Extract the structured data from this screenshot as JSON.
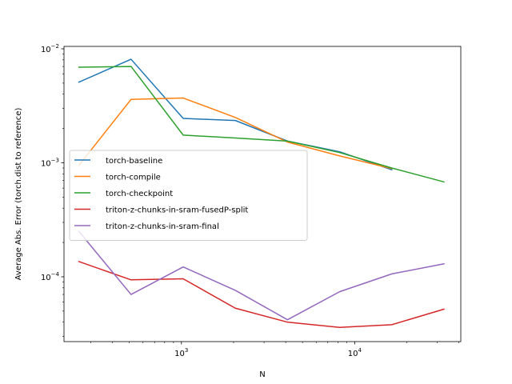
{
  "chart_data": {
    "type": "line",
    "title": "",
    "xlabel": "N",
    "ylabel": "Average Abs. Error (torch.dist to reference)",
    "xscale": "log",
    "yscale": "log",
    "xlim": [
      210,
      41000
    ],
    "ylim": [
      2.7e-05,
      0.0105
    ],
    "grid": false,
    "legend_position": "center-left",
    "x_ticks": [
      {
        "value": 1000,
        "base": "10",
        "exp": "3"
      },
      {
        "value": 10000,
        "base": "10",
        "exp": "4"
      }
    ],
    "y_ticks": [
      {
        "value": 0.0001,
        "base": "10",
        "exp": "−4"
      },
      {
        "value": 0.001,
        "base": "10",
        "exp": "−3"
      },
      {
        "value": 0.01,
        "base": "10",
        "exp": "−2"
      }
    ],
    "series": [
      {
        "name": "torch-baseline",
        "color": "#1f77b4",
        "x": [
          256,
          512,
          1024,
          2048,
          4096,
          8192,
          16384
        ],
        "y": [
          0.0051,
          0.0081,
          0.00245,
          0.00235,
          0.00155,
          0.00125,
          0.00087
        ]
      },
      {
        "name": "torch-compile",
        "color": "#ff7f0e",
        "x": [
          256,
          512,
          1024,
          2048,
          4096,
          8192,
          16384
        ],
        "y": [
          0.00095,
          0.0036,
          0.0037,
          0.0025,
          0.00152,
          0.00115,
          0.00089
        ]
      },
      {
        "name": "torch-checkpoint",
        "color": "#2ca02c",
        "x": [
          256,
          512,
          1024,
          2048,
          4096,
          8192,
          16384,
          32768
        ],
        "y": [
          0.0069,
          0.007,
          0.00175,
          0.00165,
          0.00155,
          0.00123,
          0.0009,
          0.00068
        ]
      },
      {
        "name": "triton-z-chunks-in-sram-fusedP-split",
        "color": "#d62728",
        "x": [
          256,
          512,
          1024,
          2048,
          4096,
          8192,
          16384,
          32768
        ],
        "y": [
          0.000136,
          9.4e-05,
          9.6e-05,
          5.3e-05,
          4e-05,
          3.6e-05,
          3.8e-05,
          5.2e-05
        ]
      },
      {
        "name": "triton-z-chunks-in-sram-final",
        "color": "#9467bd",
        "x": [
          256,
          512,
          1024,
          2048,
          4096,
          8192,
          16384,
          32768
        ],
        "y": [
          0.00025,
          7e-05,
          0.000122,
          7.6e-05,
          4.2e-05,
          7.4e-05,
          0.000106,
          0.00013
        ]
      }
    ]
  }
}
